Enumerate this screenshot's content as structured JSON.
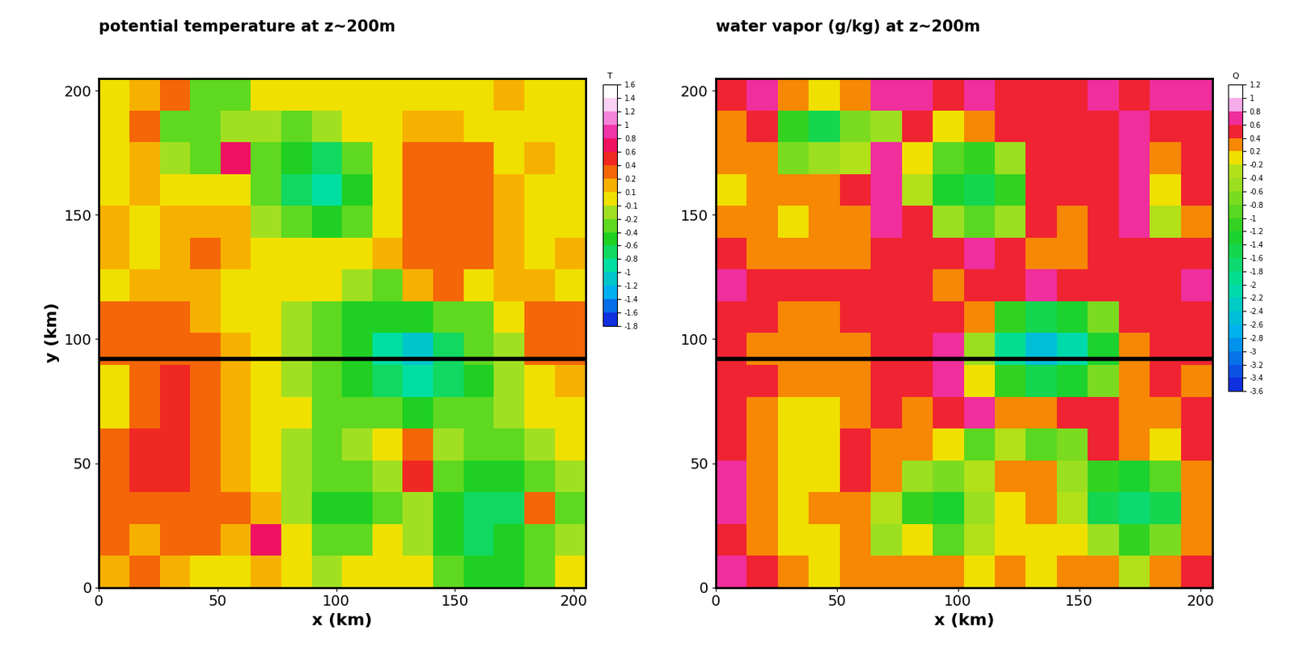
{
  "chart_data": [
    {
      "type": "heatmap",
      "title": "potential temperature at z~200m",
      "xlabel": "x (km)",
      "ylabel": "y (km)",
      "xlim": [
        0,
        205
      ],
      "ylim": [
        0,
        205
      ],
      "xticks": [
        0,
        50,
        100,
        150,
        200
      ],
      "yticks": [
        0,
        50,
        100,
        150,
        200
      ],
      "x": [
        6.4,
        19.2,
        32,
        44.8,
        57.6,
        70.4,
        83.2,
        96,
        108.8,
        121.6,
        134.4,
        147.2,
        160,
        172.8,
        185.6,
        198.4
      ],
      "y": [
        6.4,
        19.2,
        32,
        44.8,
        57.6,
        70.4,
        83.2,
        96,
        108.8,
        121.6,
        134.4,
        147.2,
        160,
        172.8,
        185.6,
        198.4
      ],
      "hline_y": 92,
      "cells": [
        [
          0.1,
          0.2,
          0.1,
          0.0,
          0.0,
          0.1,
          -0.1,
          -0.2,
          -0.1,
          0.0,
          -0.1,
          -0.3,
          -0.5,
          -0.5,
          -0.3,
          0.0
        ],
        [
          0.2,
          0.1,
          0.3,
          0.2,
          0.1,
          0.6,
          0.0,
          -0.4,
          -0.3,
          -0.1,
          -0.2,
          -0.5,
          -0.7,
          -0.6,
          -0.4,
          -0.2
        ],
        [
          0.3,
          0.3,
          0.3,
          0.2,
          0.2,
          0.1,
          -0.2,
          -0.5,
          -0.6,
          -0.3,
          -0.2,
          -0.6,
          -0.8,
          -0.8,
          0.3,
          -0.3
        ],
        [
          0.3,
          0.4,
          0.4,
          0.3,
          0.1,
          0.0,
          -0.2,
          -0.3,
          -0.3,
          -0.2,
          0.4,
          -0.3,
          -0.5,
          -0.6,
          -0.4,
          -0.2
        ],
        [
          0.3,
          0.4,
          0.4,
          0.3,
          0.1,
          -0.1,
          -0.2,
          -0.3,
          -0.2,
          -0.1,
          0.3,
          -0.2,
          -0.3,
          -0.3,
          -0.2,
          -0.1
        ],
        [
          0.0,
          0.3,
          0.4,
          0.3,
          0.1,
          0.0,
          -0.1,
          -0.3,
          -0.4,
          -0.4,
          -0.5,
          -0.4,
          -0.3,
          -0.2,
          -0.1,
          0.0
        ],
        [
          0.0,
          0.3,
          0.4,
          0.3,
          0.1,
          0.0,
          -0.2,
          -0.4,
          -0.6,
          -0.8,
          -1.0,
          -0.8,
          -0.5,
          -0.2,
          0.0,
          0.1
        ],
        [
          0.3,
          0.3,
          0.3,
          0.2,
          0.1,
          0.0,
          -0.2,
          -0.4,
          -0.6,
          -0.9,
          -1.2,
          -0.8,
          -0.4,
          -0.2,
          0.2,
          0.3
        ],
        [
          0.3,
          0.3,
          0.3,
          0.1,
          0.0,
          0.0,
          -0.2,
          -0.4,
          -0.5,
          -0.6,
          -0.6,
          -0.4,
          -0.3,
          0.0,
          0.2,
          0.3
        ],
        [
          0.0,
          0.1,
          0.1,
          0.1,
          0.0,
          0.0,
          0.0,
          -0.1,
          -0.2,
          -0.3,
          0.1,
          0.2,
          0.0,
          0.1,
          0.1,
          0.0
        ],
        [
          0.1,
          0.0,
          0.1,
          0.2,
          0.1,
          0.0,
          0.0,
          0.0,
          0.0,
          0.1,
          0.3,
          0.3,
          0.2,
          0.1,
          0.0,
          0.1
        ],
        [
          0.1,
          0.0,
          0.1,
          0.1,
          0.1,
          -0.2,
          -0.4,
          -0.5,
          -0.3,
          0.0,
          0.3,
          0.3,
          0.2,
          0.1,
          0.0,
          0.0
        ],
        [
          0.0,
          0.1,
          0.0,
          0.0,
          0.0,
          -0.3,
          -0.8,
          -1.0,
          -0.5,
          0.0,
          0.3,
          0.3,
          0.3,
          0.1,
          0.0,
          0.0
        ],
        [
          0.0,
          0.1,
          -0.2,
          -0.4,
          0.6,
          -0.3,
          -0.6,
          -0.7,
          -0.4,
          0.0,
          0.3,
          0.3,
          0.2,
          0.0,
          0.1,
          0.0
        ],
        [
          0.0,
          0.2,
          -0.3,
          -0.4,
          -0.2,
          -0.2,
          -0.3,
          -0.2,
          0.0,
          0.0,
          0.1,
          0.1,
          0.0,
          0.0,
          0.0,
          0.0
        ],
        [
          0.0,
          0.1,
          0.3,
          -0.3,
          -0.4,
          0.0,
          0.0,
          0.0,
          0.0,
          0.0,
          0.0,
          0.0,
          0.0,
          0.1,
          0.0,
          0.0
        ]
      ],
      "colorbar": {
        "title": "T",
        "range": [
          -1.8,
          1.6
        ],
        "ticks": [
          -1.8,
          -1.6,
          -1.4,
          -1.2,
          -1,
          -0.8,
          -0.6,
          -0.4,
          -0.2,
          -0.1,
          0.1,
          0.2,
          0.4,
          0.6,
          0.8,
          1,
          1.2,
          1.4,
          1.6
        ]
      }
    },
    {
      "type": "heatmap",
      "title": "water vapor (g/kg) at z~200m",
      "xlabel": "x (km)",
      "xlim": [
        0,
        205
      ],
      "ylim": [
        0,
        205
      ],
      "xticks": [
        0,
        50,
        100,
        150,
        200
      ],
      "yticks": [
        0,
        50,
        100,
        150,
        200
      ],
      "x": [
        6.4,
        19.2,
        32,
        44.8,
        57.6,
        70.4,
        83.2,
        96,
        108.8,
        121.6,
        134.4,
        147.2,
        160,
        172.8,
        185.6,
        198.4
      ],
      "y": [
        6.4,
        19.2,
        32,
        44.8,
        57.6,
        70.4,
        83.2,
        96,
        108.8,
        121.6,
        134.4,
        147.2,
        160,
        172.8,
        185.6,
        198.4
      ],
      "hline_y": 92,
      "cells": [
        [
          0.6,
          0.4,
          0.2,
          0.1,
          0.3,
          0.2,
          0.3,
          0.2,
          0.0,
          0.2,
          0.1,
          0.3,
          0.2,
          -0.4,
          0.3,
          0.4
        ],
        [
          0.5,
          0.3,
          0.1,
          0.0,
          0.2,
          -0.6,
          -0.2,
          -1.0,
          -0.4,
          0.1,
          -0.2,
          0.0,
          -0.6,
          -1.2,
          -0.8,
          0.2
        ],
        [
          0.6,
          0.2,
          0.0,
          0.2,
          0.3,
          -0.4,
          -1.2,
          -1.4,
          -0.6,
          -0.2,
          0.2,
          -0.4,
          -1.6,
          -1.8,
          -1.6,
          0.2
        ],
        [
          0.6,
          0.2,
          0.0,
          0.0,
          0.4,
          0.2,
          -0.6,
          -0.8,
          -0.4,
          0.3,
          0.2,
          -0.6,
          -1.2,
          -1.4,
          -1.0,
          0.3
        ],
        [
          0.4,
          0.2,
          0.0,
          0.0,
          0.4,
          0.3,
          0.2,
          0.0,
          -1.0,
          -0.4,
          -1.0,
          -0.8,
          0.4,
          0.2,
          0.0,
          0.4
        ],
        [
          0.5,
          0.3,
          0.0,
          0.0,
          0.3,
          0.4,
          0.3,
          0.4,
          0.6,
          0.3,
          0.2,
          0.4,
          0.5,
          0.3,
          0.2,
          0.4
        ],
        [
          0.4,
          0.4,
          0.2,
          0.2,
          0.3,
          0.4,
          0.4,
          0.6,
          -0.2,
          -1.2,
          -1.6,
          -1.4,
          -0.8,
          0.3,
          0.4,
          0.3
        ],
        [
          0.4,
          0.3,
          0.2,
          0.2,
          0.3,
          0.4,
          0.4,
          0.6,
          -0.6,
          -2.0,
          -2.6,
          -2.2,
          -1.4,
          0.2,
          0.4,
          0.4
        ],
        [
          0.5,
          0.4,
          0.3,
          0.3,
          0.4,
          0.5,
          0.4,
          0.5,
          0.2,
          -1.2,
          -1.6,
          -1.4,
          -0.8,
          0.4,
          0.4,
          0.5
        ],
        [
          0.6,
          0.5,
          0.4,
          0.4,
          0.5,
          0.5,
          0.4,
          0.3,
          0.5,
          0.5,
          0.6,
          0.5,
          0.4,
          0.4,
          0.5,
          0.6
        ],
        [
          0.4,
          0.3,
          0.2,
          0.2,
          0.3,
          0.4,
          0.4,
          0.5,
          0.6,
          0.4,
          0.3,
          0.3,
          0.4,
          0.4,
          0.4,
          0.5
        ],
        [
          0.3,
          0.2,
          0.0,
          0.2,
          0.3,
          0.6,
          0.4,
          -0.6,
          -1.0,
          -0.6,
          0.4,
          0.3,
          0.4,
          0.6,
          -0.4,
          0.3
        ],
        [
          0.0,
          0.3,
          0.2,
          0.3,
          0.5,
          0.6,
          -0.4,
          -1.4,
          -1.6,
          -1.2,
          0.4,
          0.4,
          0.4,
          0.6,
          -0.2,
          0.4
        ],
        [
          0.2,
          0.3,
          -0.8,
          -0.6,
          -0.4,
          0.6,
          -0.2,
          -1.0,
          -1.2,
          -0.6,
          0.5,
          0.4,
          0.4,
          0.6,
          0.2,
          0.4
        ],
        [
          0.3,
          0.4,
          -1.2,
          -1.6,
          -0.8,
          -0.6,
          0.5,
          0.0,
          0.2,
          0.5,
          0.4,
          0.4,
          0.5,
          0.6,
          0.4,
          0.5
        ],
        [
          0.4,
          0.6,
          0.2,
          0.0,
          0.2,
          0.6,
          0.6,
          0.4,
          0.6,
          0.4,
          0.4,
          0.4,
          0.6,
          0.5,
          0.6,
          0.6
        ]
      ],
      "colorbar": {
        "title": "Q",
        "range": [
          -3.6,
          1.2
        ],
        "ticks": [
          -3.6,
          -3.4,
          -3.2,
          -3,
          -2.8,
          -2.6,
          -2.4,
          -2.2,
          -2,
          -1.8,
          -1.6,
          -1.4,
          -1.2,
          -1,
          -0.8,
          -0.6,
          -0.4,
          -0.2,
          0.2,
          0.4,
          0.6,
          0.8,
          1,
          1.2
        ]
      }
    }
  ]
}
